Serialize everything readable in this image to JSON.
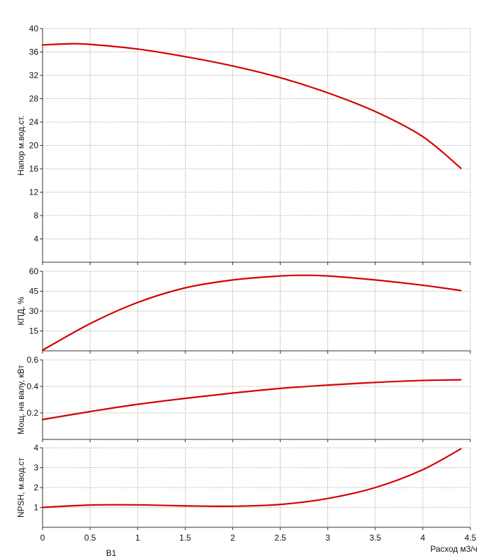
{
  "colors": {
    "curve": "#d40000",
    "grid": "#9a9a9a",
    "axis": "#333333"
  },
  "footer_label": "B1",
  "chart_data": [
    {
      "type": "line",
      "id": "head",
      "ylabel": "Напор м.вод.ст.",
      "xlim": [
        0,
        4.5
      ],
      "ylim": [
        0,
        40
      ],
      "yticks": [
        4,
        8,
        12,
        16,
        20,
        24,
        28,
        32,
        36,
        40
      ],
      "grid": true,
      "series": [
        {
          "x": [
            0,
            0.3,
            0.5,
            1,
            1.5,
            2,
            2.5,
            3,
            3.5,
            4,
            4.4
          ],
          "y": [
            37.2,
            37.4,
            37.3,
            36.5,
            35.2,
            33.6,
            31.6,
            29.0,
            25.8,
            21.5,
            16.1
          ]
        }
      ]
    },
    {
      "type": "line",
      "id": "efficiency",
      "ylabel": "КПД, %",
      "xlim": [
        0,
        4.5
      ],
      "ylim": [
        0,
        60
      ],
      "yticks": [
        15,
        30,
        45,
        60
      ],
      "grid": true,
      "series": [
        {
          "x": [
            0,
            0.5,
            1,
            1.5,
            2,
            2.5,
            2.75,
            3,
            3.5,
            4,
            4.4
          ],
          "y": [
            0.5,
            20.5,
            36.5,
            47.5,
            53.5,
            56.5,
            57.0,
            56.5,
            53.5,
            49.5,
            45.5
          ]
        }
      ]
    },
    {
      "type": "line",
      "id": "power",
      "ylabel": "Мощ. на валу, кВт",
      "xlim": [
        0,
        4.5
      ],
      "ylim": [
        0,
        0.6
      ],
      "yticks": [
        0.2,
        0.4,
        0.6
      ],
      "grid": true,
      "series": [
        {
          "x": [
            0,
            0.5,
            1,
            1.5,
            2,
            2.5,
            3,
            3.5,
            4,
            4.4
          ],
          "y": [
            0.15,
            0.21,
            0.265,
            0.31,
            0.35,
            0.385,
            0.41,
            0.43,
            0.445,
            0.45
          ]
        }
      ]
    },
    {
      "type": "line",
      "id": "npsh",
      "ylabel": "NPSH, м.вод.ст",
      "xlabel": "Расход м3/ч",
      "xlim": [
        0,
        4.5
      ],
      "ylim": [
        0,
        4
      ],
      "yticks": [
        1,
        2,
        3,
        4
      ],
      "xticks": [
        "0",
        "0.5",
        "1",
        "1.5",
        "2",
        "2.5",
        "3",
        "3.5",
        "4",
        "4.5"
      ],
      "grid": true,
      "series": [
        {
          "x": [
            0,
            0.5,
            1,
            1.5,
            2,
            2.5,
            3,
            3.5,
            4,
            4.4
          ],
          "y": [
            1.0,
            1.12,
            1.13,
            1.08,
            1.06,
            1.15,
            1.45,
            2.0,
            2.9,
            3.95
          ]
        }
      ]
    }
  ]
}
